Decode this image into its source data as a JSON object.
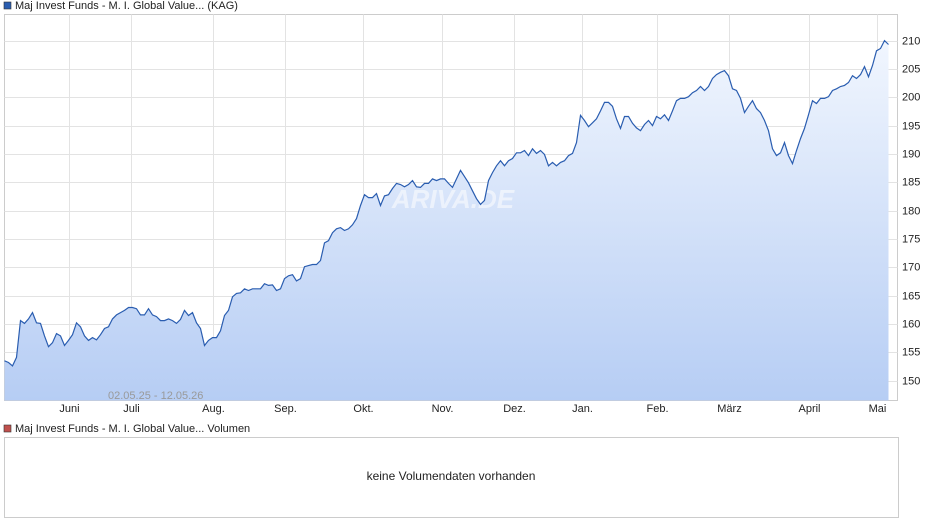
{
  "chart_data": [
    {
      "type": "line",
      "date_range": "02.05.25 - 12.05.26",
      "watermark": "ARIVA.DE",
      "grid": true,
      "xlim": [
        0,
        223.25
      ],
      "xticks": [
        {
          "value": 16,
          "label": "Juni"
        },
        {
          "value": 31.5,
          "label": "Juli"
        },
        {
          "value": 52,
          "label": "Aug."
        },
        {
          "value": 70,
          "label": "Sep."
        },
        {
          "value": 89.5,
          "label": "Okt."
        },
        {
          "value": 109.25,
          "label": "Nov."
        },
        {
          "value": 127.25,
          "label": "Dez."
        },
        {
          "value": 144.25,
          "label": "Jan."
        },
        {
          "value": 163,
          "label": "Feb."
        },
        {
          "value": 181,
          "label": "März"
        },
        {
          "value": 201,
          "label": "April"
        },
        {
          "value": 218,
          "label": "Mai"
        }
      ],
      "ylim": [
        146.5,
        214.6
      ],
      "yticks": [
        150,
        155,
        160,
        165,
        170,
        175,
        180,
        185,
        190,
        195,
        200,
        205,
        210
      ],
      "series": [
        {
          "name": "Maj Invest Funds - M. I. Global Value... (KAG)",
          "color": "#2a5db0",
          "values": [
            153.5,
            153.2,
            152.6,
            154.1,
            160.6,
            160.1,
            160.9,
            162.0,
            160.2,
            160.1,
            157.9,
            156.0,
            156.7,
            158.3,
            157.9,
            156.2,
            157.1,
            158.1,
            160.2,
            159.5,
            157.9,
            157.1,
            157.6,
            157.2,
            158.1,
            159.2,
            159.5,
            160.9,
            161.6,
            162.0,
            162.4,
            162.9,
            162.9,
            162.7,
            161.6,
            161.6,
            162.7,
            161.6,
            161.3,
            160.6,
            160.6,
            160.9,
            160.6,
            160.1,
            160.8,
            162.4,
            161.5,
            162.0,
            160.2,
            159.2,
            156.2,
            157.1,
            157.6,
            157.6,
            158.8,
            161.5,
            162.4,
            164.8,
            165.4,
            165.5,
            166.2,
            165.9,
            166.2,
            166.2,
            166.2,
            167.1,
            166.8,
            166.9,
            165.9,
            166.2,
            168.0,
            168.5,
            168.7,
            167.6,
            168.0,
            170.1,
            170.3,
            170.5,
            170.5,
            171.2,
            174.3,
            174.7,
            176.1,
            176.8,
            177.0,
            176.5,
            176.8,
            177.5,
            178.6,
            180.9,
            182.8,
            182.3,
            182.3,
            183.0,
            180.9,
            182.6,
            182.8,
            183.9,
            184.8,
            184.6,
            184.2,
            184.6,
            185.3,
            184.2,
            184.1,
            184.8,
            184.8,
            185.6,
            185.3,
            185.6,
            185.6,
            184.8,
            184.1,
            185.6,
            187.1,
            186.0,
            184.9,
            183.5,
            182.1,
            181.1,
            181.8,
            185.3,
            186.7,
            187.9,
            188.8,
            187.9,
            188.8,
            189.2,
            190.2,
            190.2,
            190.6,
            189.7,
            190.9,
            190.1,
            190.6,
            189.9,
            187.9,
            188.5,
            187.9,
            188.5,
            188.8,
            189.7,
            190.1,
            192.0,
            196.8,
            195.9,
            194.8,
            195.5,
            196.2,
            197.6,
            199.1,
            199.1,
            198.4,
            196.2,
            194.5,
            196.6,
            196.6,
            195.4,
            194.6,
            194.1,
            195.2,
            195.9,
            195.0,
            196.6,
            196.2,
            196.9,
            195.9,
            197.6,
            199.4,
            199.8,
            199.8,
            200.1,
            200.8,
            201.2,
            201.9,
            201.2,
            201.9,
            203.3,
            204.0,
            204.4,
            204.7,
            203.8,
            201.5,
            201.2,
            199.8,
            197.3,
            198.4,
            199.4,
            198.0,
            197.3,
            195.9,
            194.1,
            190.9,
            189.7,
            190.2,
            192.0,
            189.7,
            188.3,
            190.6,
            192.7,
            194.5,
            196.9,
            199.4,
            198.9,
            199.8,
            199.8,
            200.1,
            201.2,
            201.5,
            201.9,
            202.1,
            202.6,
            203.8,
            203.3,
            204.0,
            205.4,
            203.6,
            205.6,
            208.2,
            208.6,
            210.0,
            209.3
          ]
        }
      ]
    },
    {
      "type": "bar",
      "message": "keine Volumendaten vorhanden",
      "series": [
        {
          "name": "Maj Invest Funds - M. I. Global Value... Volumen",
          "color": "#c0504d",
          "values": []
        }
      ]
    }
  ]
}
